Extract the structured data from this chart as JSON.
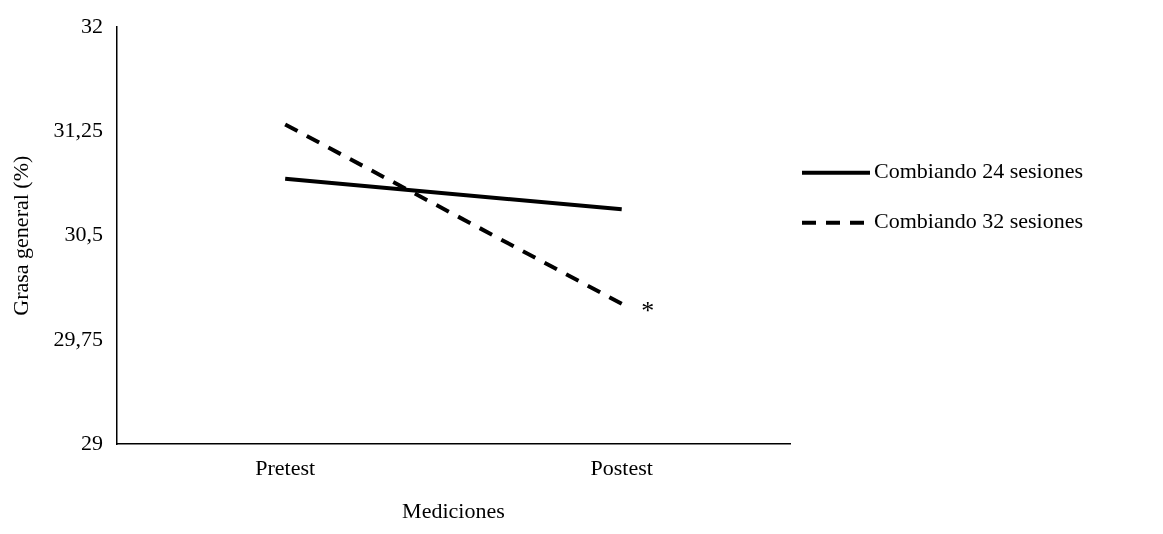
{
  "chart_data": {
    "type": "line",
    "xlabel": "Mediciones",
    "ylabel": "Grasa general (%)",
    "categories": [
      "Pretest",
      "Postest"
    ],
    "series": [
      {
        "name": "Combiando 24 sesiones",
        "color": "#000000",
        "values": [
          30.91,
          30.69
        ],
        "line_style": "solid"
      },
      {
        "name": "Combiando 32 sesiones",
        "color": "#000000",
        "values": [
          31.3,
          30.01
        ],
        "line_style": "dashed"
      }
    ],
    "ylim": [
      29,
      32
    ],
    "yticks": [
      29,
      {
        "value": 29.75,
        "label": "29,75"
      },
      {
        "value": 30.5,
        "label": "30,5"
      },
      {
        "value": 31.25,
        "label": "31,25"
      },
      32
    ],
    "grid": false,
    "legend": "right",
    "marker": "none",
    "annotations": [
      {
        "text": "*",
        "x": "Postest",
        "y": 30.01
      }
    ]
  }
}
